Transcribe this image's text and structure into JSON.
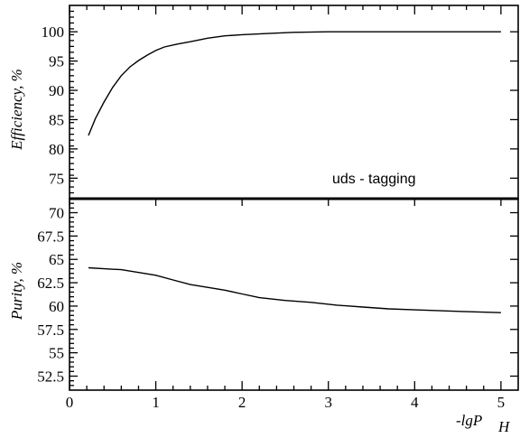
{
  "chart_data": [
    {
      "type": "line",
      "panel": "top",
      "ylabel": "Efficiency, %",
      "annotation": "uds - tagging",
      "ylim": [
        71.5,
        104.5
      ],
      "yticks": [
        75,
        80,
        85,
        90,
        95,
        100
      ],
      "ytick_labels": [
        "75",
        "80",
        "85",
        "90",
        "95",
        "100"
      ],
      "grid": false,
      "series": [
        {
          "x": [
            0.22,
            0.3,
            0.4,
            0.5,
            0.6,
            0.7,
            0.8,
            0.9,
            1.0,
            1.1,
            1.25,
            1.4,
            1.6,
            1.8,
            2.0,
            2.3,
            2.6,
            3.0,
            3.5,
            4.0,
            4.5,
            5.0
          ],
          "values": [
            82.3,
            85.2,
            88.0,
            90.5,
            92.5,
            94.0,
            95.1,
            96.0,
            96.8,
            97.4,
            97.9,
            98.3,
            98.9,
            99.3,
            99.5,
            99.7,
            99.9,
            100.0,
            100.0,
            100.0,
            100.0,
            100.0
          ]
        }
      ]
    },
    {
      "type": "line",
      "panel": "bottom",
      "ylabel": "Purity, %",
      "xlabel": "-lgP",
      "xlabel_sub": "H",
      "xlim": [
        0,
        5.2
      ],
      "xticks": [
        0,
        1,
        2,
        3,
        4,
        5
      ],
      "xtick_labels": [
        "0",
        "1",
        "2",
        "3",
        "4",
        "5"
      ],
      "ylim": [
        51,
        71.5
      ],
      "yticks": [
        52.5,
        55,
        57.5,
        60,
        62.5,
        65,
        67.5,
        70
      ],
      "ytick_labels": [
        "52.5",
        "55",
        "57.5",
        "60",
        "62.5",
        "65",
        "67.5",
        "70"
      ],
      "grid": false,
      "series": [
        {
          "x": [
            0.22,
            0.4,
            0.6,
            0.8,
            1.0,
            1.2,
            1.4,
            1.6,
            1.8,
            2.0,
            2.2,
            2.5,
            2.8,
            3.1,
            3.4,
            3.7,
            4.0,
            4.3,
            4.6,
            5.0
          ],
          "values": [
            64.1,
            64.0,
            63.9,
            63.6,
            63.3,
            62.8,
            62.3,
            62.0,
            61.7,
            61.3,
            60.9,
            60.6,
            60.4,
            60.1,
            59.9,
            59.7,
            59.6,
            59.5,
            59.4,
            59.3
          ]
        }
      ]
    }
  ]
}
